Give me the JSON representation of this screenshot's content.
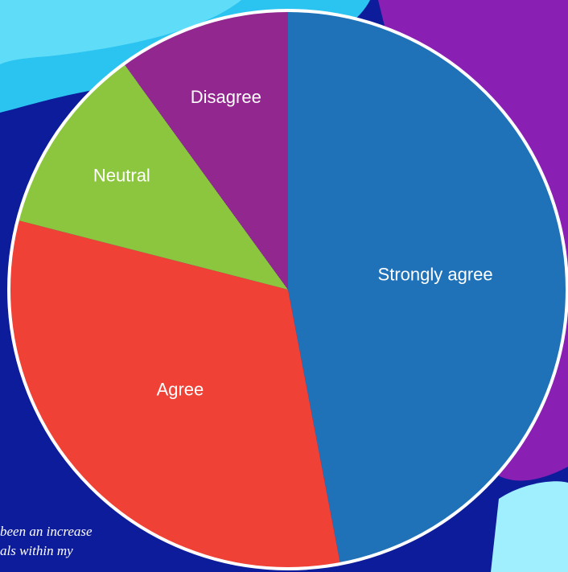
{
  "chart_data": {
    "type": "pie",
    "categories": [
      "Strongly agree",
      "Agree",
      "Neutral",
      "Disagree"
    ],
    "values": [
      47,
      32,
      11,
      10
    ],
    "colors": [
      "#1f72b8",
      "#ef4136",
      "#8cc63f",
      "#92278f"
    ]
  },
  "background_text": [
    "been an increase",
    "als within my"
  ]
}
